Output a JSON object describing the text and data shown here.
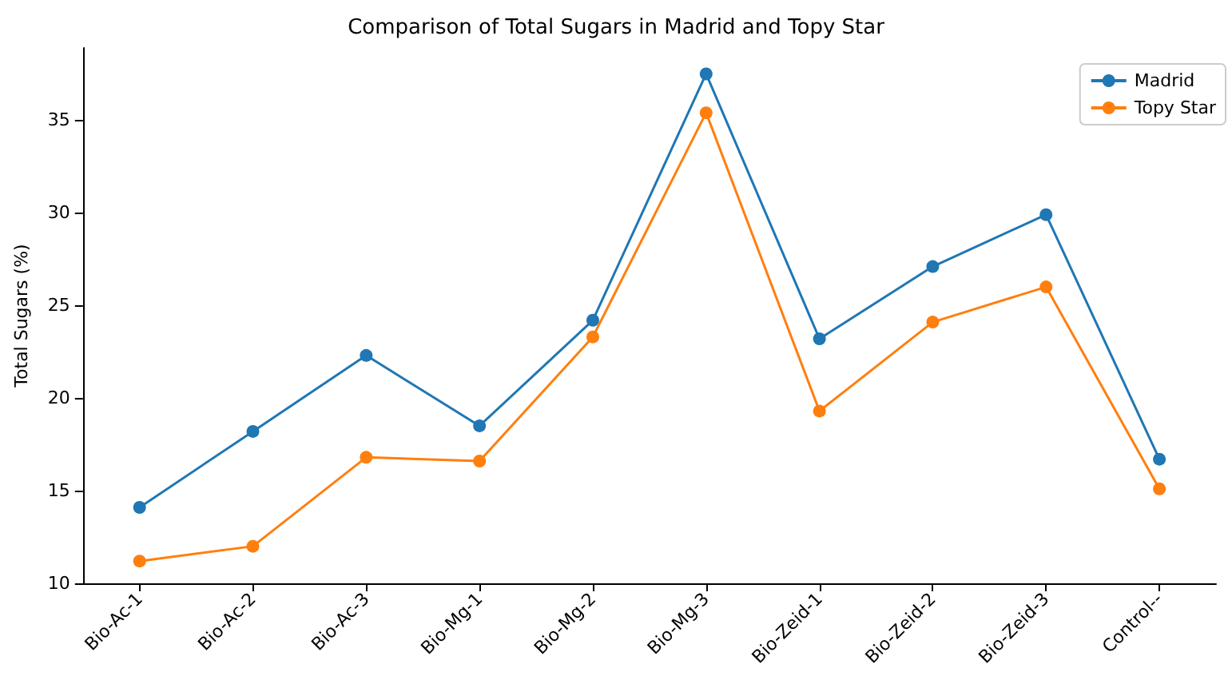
{
  "chart_data": {
    "type": "line",
    "title": "Comparison of Total Sugars in Madrid and Topy Star",
    "ylabel": "Total Sugars (%)",
    "categories": [
      "Bio-Ac-1",
      "Bio-Ac-2",
      "Bio-Ac-3",
      "Bio-Mg-1",
      "Bio-Mg-2",
      "Bio-Mg-3",
      "Bio-Zeid-1",
      "Bio-Zeid-2",
      "Bio-Zeid-3",
      "Control--"
    ],
    "series": [
      {
        "name": "Madrid",
        "color": "#1f77b4",
        "values": [
          14.1,
          18.2,
          22.3,
          18.5,
          24.2,
          37.5,
          23.2,
          27.1,
          29.9,
          16.7
        ]
      },
      {
        "name": "Topy Star",
        "color": "#ff7f0e",
        "values": [
          11.2,
          12.0,
          16.8,
          16.6,
          23.3,
          35.4,
          19.3,
          24.1,
          26.0,
          15.1
        ]
      }
    ],
    "ylim": [
      10,
      38.9
    ],
    "yticks": [
      10,
      15,
      20,
      25,
      30,
      35
    ],
    "grid": false,
    "legend": "top right",
    "marker": "circle",
    "line_style": "solid"
  }
}
